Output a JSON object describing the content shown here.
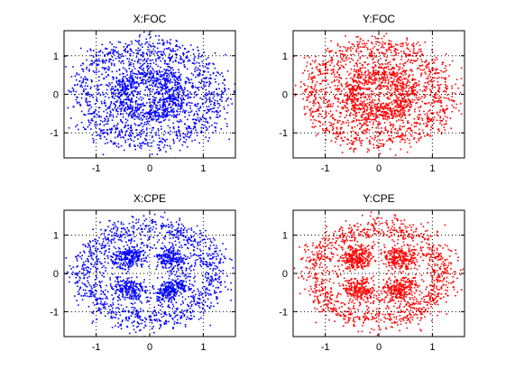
{
  "chart_data": [
    {
      "type": "scatter",
      "title": "X:FOC",
      "color": "#0000ff",
      "pattern": "two-concentric-rings",
      "xlim": [
        -1.6,
        1.6
      ],
      "ylim": [
        -1.65,
        1.65
      ],
      "xticks": [
        -1,
        0,
        1
      ],
      "yticks": [
        -1,
        0,
        1
      ],
      "grid": true,
      "rings": [
        {
          "radius": 0.55,
          "spread": 0.18
        },
        {
          "radius": 1.2,
          "spread": 0.2
        }
      ]
    },
    {
      "type": "scatter",
      "title": "Y:FOC",
      "color": "#ff0000",
      "pattern": "two-concentric-rings",
      "xlim": [
        -1.6,
        1.6
      ],
      "ylim": [
        -1.65,
        1.65
      ],
      "xticks": [
        -1,
        0,
        1
      ],
      "yticks": [
        -1,
        0,
        1
      ],
      "grid": true,
      "rings": [
        {
          "radius": 0.55,
          "spread": 0.18
        },
        {
          "radius": 1.2,
          "spread": 0.2
        }
      ]
    },
    {
      "type": "scatter",
      "title": "X:CPE",
      "color": "#0000ff",
      "pattern": "clustered-rings",
      "xlim": [
        -1.6,
        1.6
      ],
      "ylim": [
        -1.65,
        1.65
      ],
      "xticks": [
        -1,
        0,
        1
      ],
      "yticks": [
        -1,
        0,
        1
      ],
      "grid": true,
      "rings": [
        {
          "radius": 0.6,
          "spread": 0.14
        },
        {
          "radius": 1.2,
          "spread": 0.17
        }
      ]
    },
    {
      "type": "scatter",
      "title": "Y:CPE",
      "color": "#ff0000",
      "pattern": "clustered-rings",
      "xlim": [
        -1.6,
        1.6
      ],
      "ylim": [
        -1.65,
        1.65
      ],
      "xticks": [
        -1,
        0,
        1
      ],
      "yticks": [
        -1,
        0,
        1
      ],
      "grid": true,
      "rings": [
        {
          "radius": 0.6,
          "spread": 0.15
        },
        {
          "radius": 1.2,
          "spread": 0.18
        }
      ]
    }
  ]
}
